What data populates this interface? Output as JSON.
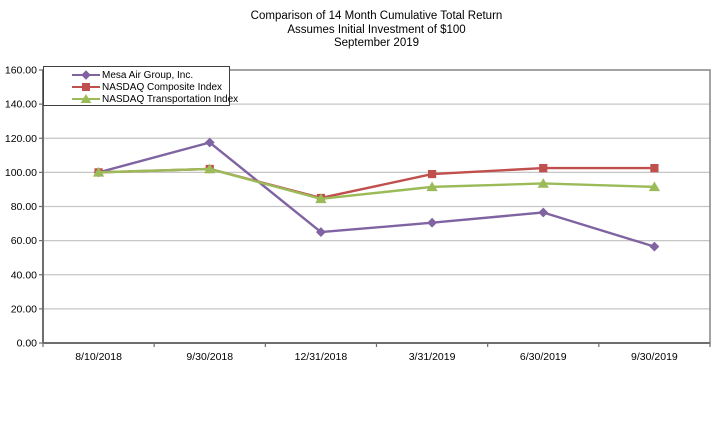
{
  "chart_data": {
    "type": "line",
    "title": "Comparison of 14 Month Cumulative Total Return",
    "subtitle": "Assumes Initial Investment of $100",
    "period_label": "September 2019",
    "categories": [
      "8/10/2018",
      "9/30/2018",
      "12/31/2018",
      "3/31/2019",
      "6/30/2019",
      "9/30/2019"
    ],
    "series": [
      {
        "name": "Mesa Air Group, Inc.",
        "marker": "diamond",
        "color": "#8064A2",
        "values": [
          100,
          117.5,
          65,
          70.5,
          76.5,
          56.5
        ]
      },
      {
        "name": "NASDAQ Composite Index",
        "marker": "square",
        "color": "#C0504D",
        "values": [
          100,
          102,
          85,
          99,
          102.5,
          102.5
        ]
      },
      {
        "name": "NASDAQ Transportation Index",
        "marker": "triangle",
        "color": "#9BBB59",
        "values": [
          100,
          102,
          84.5,
          91.5,
          93.5,
          91.5
        ]
      }
    ],
    "ylim": [
      0,
      160
    ],
    "ytick_step": 20,
    "ytick_labels": [
      "0.00",
      "20.00",
      "40.00",
      "60.00",
      "80.00",
      "100.00",
      "120.00",
      "140.00",
      "160.00"
    ],
    "grid": true,
    "legend_position": "top-left",
    "colors": {
      "gridline": "#C6C6C6",
      "plot_border": "#8C8C8C",
      "axis_line": "#6E6E6E",
      "text": "#000000"
    }
  }
}
